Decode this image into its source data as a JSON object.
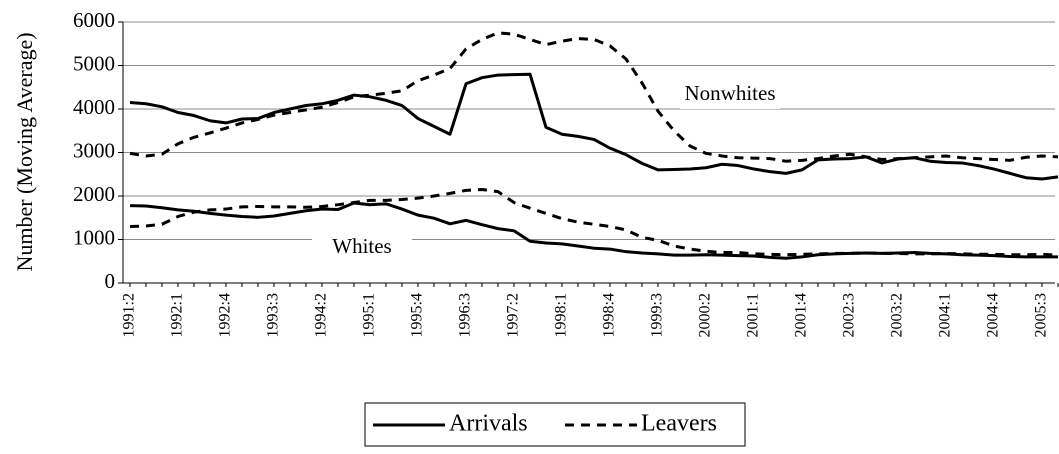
{
  "chart_data": {
    "type": "line",
    "y_label": "Number (Moving Average)",
    "categories": [
      "1991:2",
      null,
      null,
      "1992:1",
      null,
      null,
      "1992:4",
      null,
      null,
      "1993:3",
      null,
      null,
      "1994:2",
      null,
      null,
      "1995:1",
      null,
      null,
      "1995:4",
      null,
      null,
      "1996:3",
      null,
      null,
      "1997:2",
      null,
      null,
      "1998:1",
      null,
      null,
      "1998:4",
      null,
      null,
      "1999:3",
      null,
      null,
      "2000:2",
      null,
      null,
      "2001:1",
      null,
      null,
      "2001:4",
      null,
      null,
      "2002:3",
      null,
      null,
      "2003:2",
      null,
      null,
      "2004:1",
      null,
      null,
      "2004:4",
      null,
      null,
      "2005:3",
      null
    ],
    "ylim": [
      0,
      6000
    ],
    "yticks": [
      0,
      1000,
      2000,
      3000,
      4000,
      5000,
      6000
    ],
    "grid": true,
    "series": [
      {
        "name": "Arrivals",
        "group": "Nonwhites",
        "dash": false,
        "color": "#000000",
        "values": [
          4150,
          4120,
          4050,
          3920,
          3850,
          3730,
          3680,
          3770,
          3780,
          3920,
          4000,
          4080,
          4120,
          4200,
          4320,
          4280,
          4200,
          4080,
          3780,
          3600,
          3420,
          4580,
          4720,
          4780,
          4790,
          4800,
          3580,
          3420,
          3370,
          3300,
          3100,
          2950,
          2750,
          2600,
          2610,
          2620,
          2650,
          2730,
          2700,
          2620,
          2560,
          2520,
          2600,
          2830,
          2850,
          2860,
          2900,
          2760,
          2850,
          2880,
          2800,
          2770,
          2760,
          2700,
          2620,
          2520,
          2420,
          2390,
          2440
        ]
      },
      {
        "name": "Leavers",
        "group": "Nonwhites",
        "dash": true,
        "color": "#000000",
        "values": [
          2980,
          2920,
          2960,
          3200,
          3350,
          3450,
          3560,
          3680,
          3760,
          3860,
          3920,
          3980,
          4040,
          4150,
          4280,
          4320,
          4360,
          4420,
          4650,
          4780,
          4930,
          5380,
          5600,
          5750,
          5720,
          5600,
          5480,
          5560,
          5620,
          5600,
          5450,
          5150,
          4600,
          3950,
          3500,
          3150,
          2980,
          2920,
          2880,
          2870,
          2860,
          2800,
          2820,
          2860,
          2920,
          2960,
          2900,
          2840,
          2860,
          2880,
          2900,
          2920,
          2880,
          2860,
          2840,
          2820,
          2890,
          2920,
          2900
        ]
      },
      {
        "name": "Arrivals",
        "group": "Whites",
        "dash": false,
        "color": "#000000",
        "values": [
          1780,
          1770,
          1730,
          1680,
          1650,
          1600,
          1560,
          1530,
          1510,
          1540,
          1600,
          1660,
          1700,
          1690,
          1840,
          1800,
          1820,
          1700,
          1560,
          1490,
          1360,
          1440,
          1340,
          1250,
          1200,
          960,
          920,
          900,
          850,
          800,
          780,
          720,
          690,
          670,
          640,
          640,
          650,
          640,
          630,
          620,
          590,
          570,
          600,
          650,
          670,
          680,
          690,
          680,
          690,
          700,
          680,
          670,
          650,
          640,
          630,
          610,
          600,
          600,
          600
        ]
      },
      {
        "name": "Leavers",
        "group": "Whites",
        "dash": true,
        "color": "#000000",
        "values": [
          1300,
          1310,
          1350,
          1530,
          1630,
          1680,
          1700,
          1750,
          1760,
          1750,
          1750,
          1740,
          1760,
          1800,
          1850,
          1900,
          1900,
          1920,
          1950,
          2000,
          2060,
          2130,
          2150,
          2100,
          1850,
          1720,
          1600,
          1480,
          1400,
          1350,
          1300,
          1220,
          1050,
          980,
          850,
          780,
          730,
          700,
          700,
          670,
          660,
          650,
          660,
          670,
          680,
          680,
          690,
          680,
          680,
          670,
          670,
          680,
          670,
          660,
          660,
          650,
          650,
          660,
          640
        ]
      }
    ]
  }
}
